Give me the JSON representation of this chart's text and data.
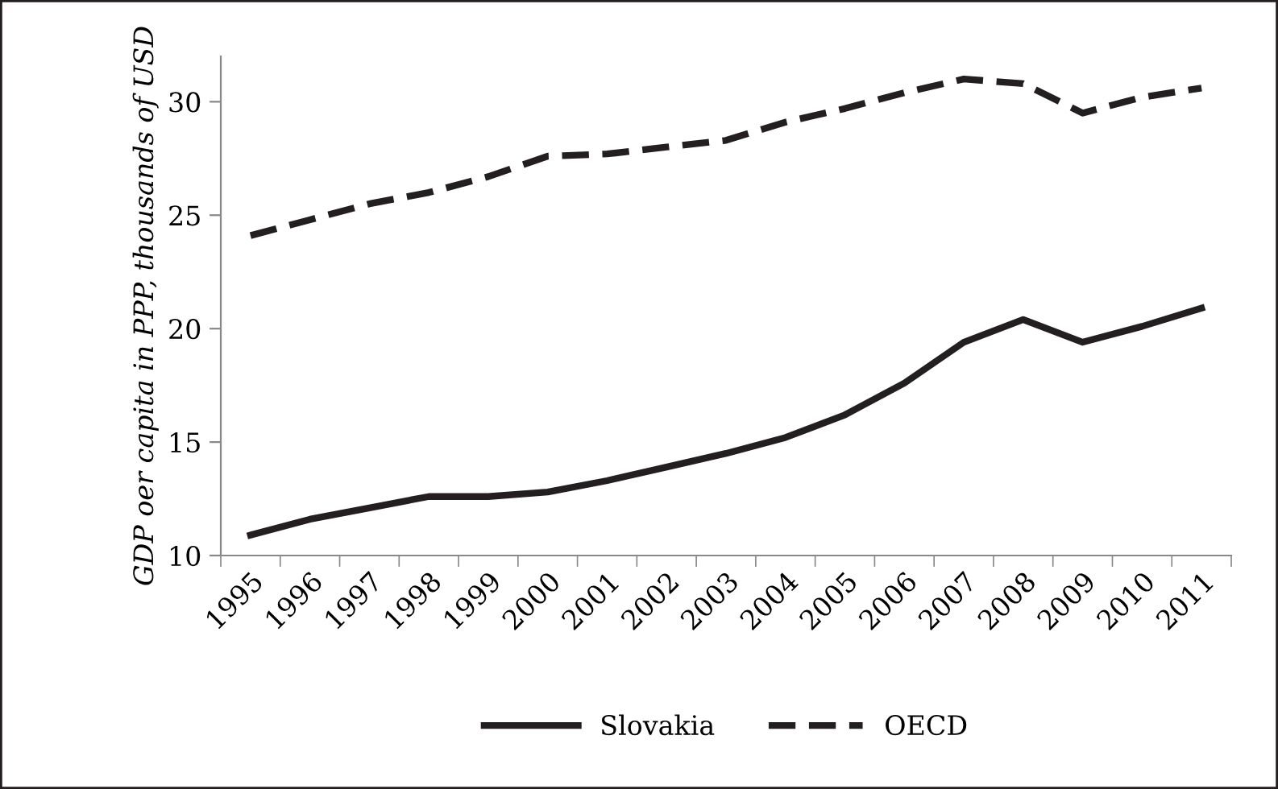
{
  "chart_data": {
    "type": "line",
    "ylabel": "GDP oer capita in PPP, thousands of USD",
    "categories": [
      "1995",
      "1996",
      "1997",
      "1998",
      "1999",
      "2000",
      "2001",
      "2002",
      "2003",
      "2004",
      "2005",
      "2006",
      "2007",
      "2008",
      "2009",
      "2010",
      "2011"
    ],
    "series": [
      {
        "name": "Slovakia",
        "color": "#231f20",
        "line_style": "solid",
        "values": [
          10.9,
          11.6,
          12.1,
          12.6,
          12.6,
          12.8,
          13.3,
          13.9,
          14.5,
          15.2,
          16.2,
          17.6,
          19.4,
          20.4,
          19.4,
          20.1,
          20.9
        ]
      },
      {
        "name": "OECD",
        "color": "#231f20",
        "line_style": "dashed",
        "values": [
          24.1,
          24.8,
          25.5,
          26.0,
          26.7,
          27.6,
          27.7,
          28.0,
          28.3,
          29.1,
          29.7,
          30.4,
          31.0,
          30.8,
          29.5,
          30.2,
          30.6
        ]
      }
    ],
    "ylim": [
      10,
      32
    ],
    "yticks": [
      10,
      15,
      20,
      25,
      30
    ],
    "grid": false,
    "legend": "bottom",
    "marker": "none"
  }
}
